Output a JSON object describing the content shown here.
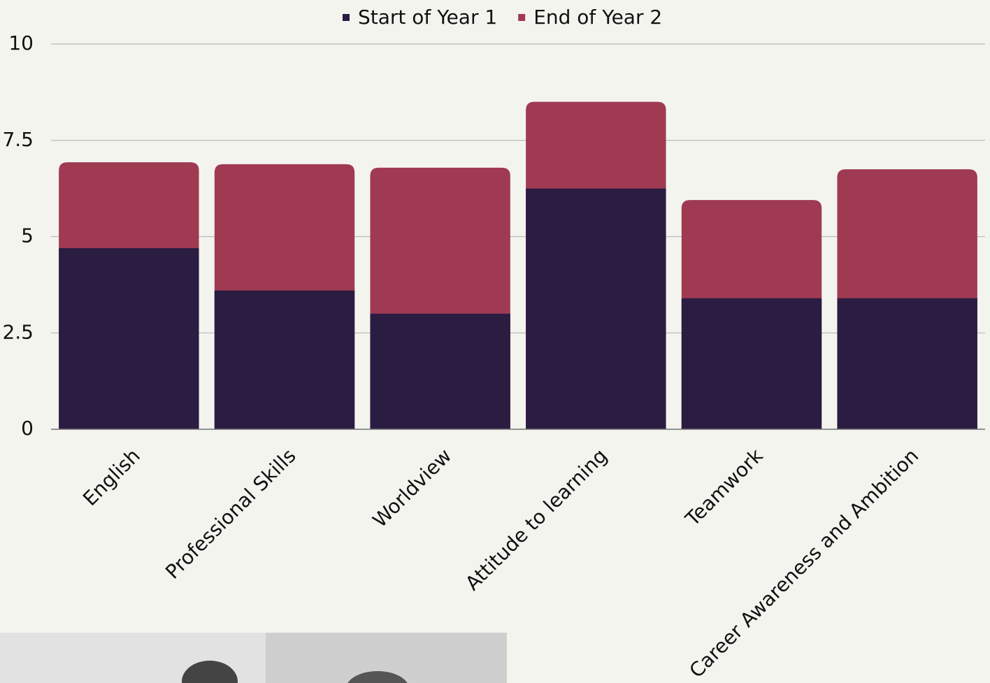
{
  "chart_data": {
    "type": "bar",
    "mode": "overlap",
    "categories": [
      "English",
      "Professional Skills",
      "Worldview",
      "Attitude to learning",
      "Teamwork",
      "Career Awareness and Ambition"
    ],
    "series": [
      {
        "name": "End of Year 2",
        "color": "#a03a53",
        "values": [
          6.93,
          6.88,
          6.79,
          8.5,
          5.95,
          6.75
        ]
      },
      {
        "name": "Start of Year 1",
        "color": "#2b1c42",
        "values": [
          4.7,
          3.6,
          3.0,
          6.25,
          3.4,
          3.4
        ]
      }
    ],
    "legend_order": [
      1,
      0
    ],
    "ylim": [
      0,
      10
    ],
    "yticks": [
      0,
      2.5,
      5,
      7.5,
      10
    ],
    "grid": true
  }
}
